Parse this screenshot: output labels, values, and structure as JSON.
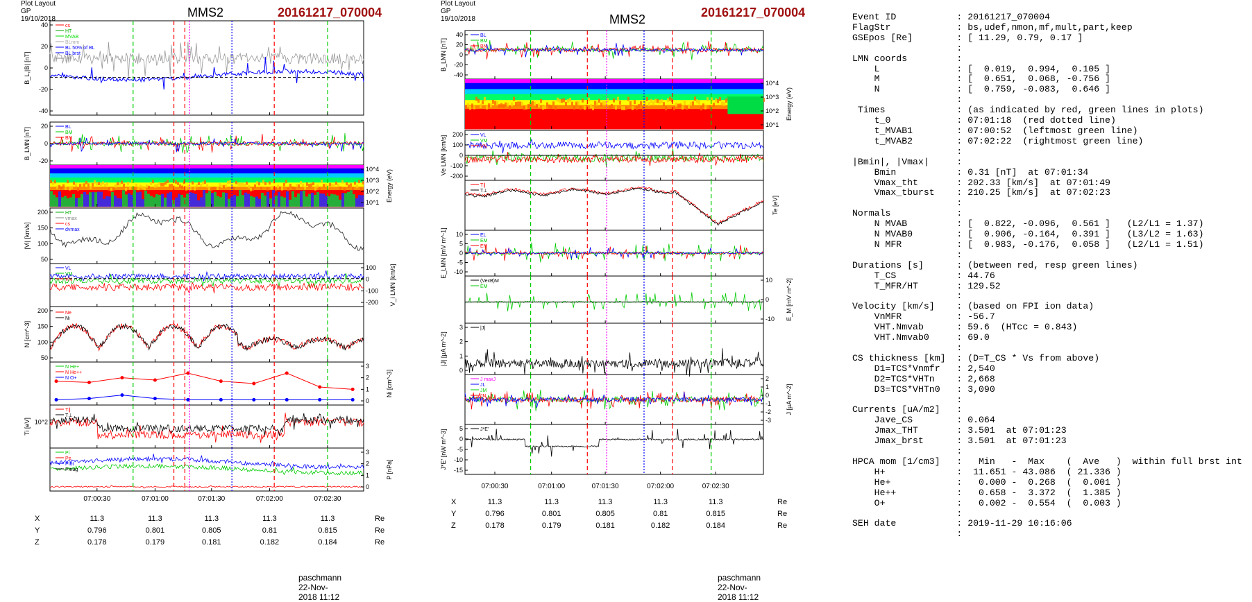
{
  "left_panel": {
    "header": "Plot Layout GP 19/10/2018",
    "spacecraft": "MMS2",
    "event": "20161217_070004",
    "footer": "paschmann 22-Nov-2018 11:12",
    "time_ticks": [
      "07:00:30",
      "07:01:00",
      "07:01:30",
      "07:02:00",
      "07:02:30"
    ],
    "coords": [
      {
        "label": "X",
        "values": [
          "11.3",
          "11.3",
          "11.3",
          "11.3",
          "11.3"
        ],
        "unit": "Re"
      },
      {
        "label": "Y",
        "values": [
          "0.796",
          "0.801",
          "0.805",
          "0.81",
          "0.815"
        ],
        "unit": "Re"
      },
      {
        "label": "Z",
        "values": [
          "0.178",
          "0.179",
          "0.181",
          "0.182",
          "0.184"
        ],
        "unit": "Re"
      }
    ],
    "panels": [
      {
        "id": "bl",
        "ylabel": "B_L,|B| [nT]",
        "yticks": [
          "40",
          "20",
          "0",
          "-20",
          "-40"
        ],
        "legend": [
          "cs",
          "HT",
          "MVAB",
          "BLmm",
          "BL 50% of BL",
          "BL brst",
          "|B|"
        ],
        "legend_colors": [
          "#ff0000",
          "#00aa00",
          "#00dd00",
          "#aaaaaa",
          "#0000ff",
          "#0000ff",
          "#888888"
        ]
      },
      {
        "id": "blmn",
        "ylabel": "B_LMN [nT]",
        "yticks": [
          "20",
          "0",
          "-20"
        ],
        "legend": [
          "BL",
          "BM",
          "BN"
        ],
        "legend_colors": [
          "#0000ff",
          "#00cc00",
          "#ff0000"
        ]
      },
      {
        "id": "espec",
        "ylabel_right": "Energy (eV)",
        "yticks_right": [
          "10^4",
          "10^3",
          "10^2",
          "10^1"
        ]
      },
      {
        "id": "vi",
        "ylabel": "|Vi| [km/s]",
        "yticks": [
          "200",
          "150",
          "100",
          "50"
        ],
        "legend": [
          "HT",
          "vmax",
          "cs",
          "dvmax"
        ],
        "legend_colors": [
          "#00aa00",
          "#888888",
          "#ff0000",
          "#0000ff"
        ]
      },
      {
        "id": "vilmn",
        "ylabel_right": "V_i LMN [km/s]",
        "yticks_right": [
          "100",
          "0",
          "-100",
          "-200"
        ],
        "legend": [
          "VL",
          "VM",
          "VN"
        ],
        "legend_colors": [
          "#0000ff",
          "#00cc00",
          "#ff0000"
        ]
      },
      {
        "id": "n",
        "ylabel": "N [cm^-3]",
        "yticks": [
          "200",
          "150",
          "100",
          "50"
        ],
        "legend": [
          "Ne",
          "Ni"
        ],
        "legend_colors": [
          "#ff0000",
          "#000000"
        ]
      },
      {
        "id": "ni",
        "ylabel_right": "Ni [cm^-3]",
        "yticks_right": [
          "3",
          "2",
          "1",
          "0"
        ],
        "legend": [
          "N He+",
          "N He++",
          "N O+"
        ],
        "legend_colors": [
          "#00cc00",
          "#ff0000",
          "#0000ff"
        ]
      },
      {
        "id": "ti",
        "ylabel": "Ti [eV]",
        "yticks": [
          "10^2"
        ],
        "legend": [
          "T∥",
          "T⊥"
        ],
        "legend_colors": [
          "#ff0000",
          "#000000"
        ]
      },
      {
        "id": "p",
        "ylabel_right": "P [nPa]",
        "yticks_right": [
          "3",
          "2",
          "1",
          "0"
        ],
        "legend": [
          "Pi",
          "Pe",
          "Ptot",
          "Pmag"
        ],
        "legend_colors": [
          "#00cc00",
          "#ff0000",
          "#0000ff",
          "#000000"
        ]
      }
    ]
  },
  "mid_panel": {
    "header": "Plot Layout GP 19/10/2018",
    "spacecraft": "MMS2",
    "event": "20161217_070004",
    "footer": "paschmann 22-Nov-2018 11:12",
    "time_ticks": [
      "07:00:30",
      "07:01:00",
      "07:01:30",
      "07:02:00",
      "07:02:30"
    ],
    "coords": [
      {
        "label": "X",
        "values": [
          "11.3",
          "11.3",
          "11.3",
          "11.3",
          "11.3"
        ],
        "unit": "Re"
      },
      {
        "label": "Y",
        "values": [
          "0.796",
          "0.801",
          "0.805",
          "0.81",
          "0.815"
        ],
        "unit": "Re"
      },
      {
        "label": "Z",
        "values": [
          "0.178",
          "0.179",
          "0.181",
          "0.182",
          "0.184"
        ],
        "unit": "Re"
      }
    ],
    "panels": [
      {
        "id": "blmn2",
        "ylabel": "B_LMN [nT]",
        "yticks": [
          "40",
          "20",
          "0",
          "-20",
          "-40"
        ],
        "legend": [
          "BL",
          "BM",
          "BN"
        ],
        "legend_colors": [
          "#0000ff",
          "#00cc00",
          "#ff0000"
        ]
      },
      {
        "id": "espec2",
        "ylabel_right": "Energy (eV)",
        "yticks_right": [
          "10^4",
          "10^3",
          "10^2",
          "10^1"
        ]
      },
      {
        "id": "ve",
        "ylabel": "Ve LMN [km/s]",
        "yticks": [
          "200",
          "100",
          "0",
          "-100",
          "-200"
        ],
        "legend": [
          "VL",
          "VM",
          "VN"
        ],
        "legend_colors": [
          "#0000ff",
          "#00cc00",
          "#ff0000"
        ]
      },
      {
        "id": "te",
        "ylabel_right": "Te [eV]",
        "legend": [
          "T∥",
          "T⊥"
        ],
        "legend_colors": [
          "#ff0000",
          "#000000"
        ]
      },
      {
        "id": "elmn",
        "ylabel": "E_LMN [mV m^-1]",
        "yticks": [
          "10",
          "5",
          "0",
          "-5",
          "-10"
        ],
        "legend": [
          "EL",
          "EM",
          "EN"
        ],
        "legend_colors": [
          "#0000ff",
          "#00cc00",
          "#ff0000"
        ]
      },
      {
        "id": "em",
        "ylabel_right": "E_M [mV m^-2]",
        "yticks_right": [
          "10",
          "0",
          "-10"
        ],
        "legend": [
          "(VexB)M",
          "EM"
        ],
        "legend_colors": [
          "#000000",
          "#00cc00"
        ]
      },
      {
        "id": "j",
        "ylabel": "|J| [µA m^-2]",
        "yticks": [
          "3",
          "2",
          "1",
          "0"
        ],
        "legend": [
          "|J|"
        ],
        "legend_colors": [
          "#000000"
        ]
      },
      {
        "id": "jlmn",
        "ylabel_right": "J [µA m^-2]",
        "yticks_right": [
          "2",
          "1",
          "0",
          "-1",
          "-2",
          "-3"
        ],
        "legend": [
          "J maxJ",
          "JL",
          "JM",
          "JN"
        ],
        "legend_colors": [
          "#ff00ff",
          "#0000ff",
          "#00cc00",
          "#ff0000"
        ]
      },
      {
        "id": "je",
        "ylabel": "J*E' [nW m^-3]",
        "yticks": [
          "5",
          "0",
          "-5",
          "-10",
          "-15"
        ],
        "legend": [
          "J*E'"
        ],
        "legend_colors": [
          "#000000"
        ]
      }
    ]
  },
  "info_lines": [
    "Event ID           : 20161217_070004",
    "FlagStr            : bs,udef,nmon,mf,mult,part,keep",
    "GSEpos [Re]        : [ 11.29, 0.79, 0.17 ]",
    "                   :",
    "LMN coords         :",
    "    L              : [  0.019,  0.994,  0.105 ]",
    "    M              : [  0.651,  0.068, -0.756 ]",
    "    N              : [  0.759, -0.083,  0.646 ]",
    "                   :",
    " Times             : (as indicated by red, green lines in plots)",
    "    t_0            : 07:01:18  (red dotted line)",
    "    t_MVAB1        : 07:00:52  (leftmost green line)",
    "    t_MVAB2        : 07:02:22  (rightmost green line)",
    "                   :",
    "|Bmin|, |Vmax|     :",
    "    Bmin           : 0.31 [nT]  at 07:01:34",
    "    Vmax_tht       : 202.33 [km/s]  at 07:01:49",
    "    Vmax_tburst    : 210.25 [km/s]  at 07:02:23",
    "                   :",
    "Normals            :",
    "    N MVAB         : [  0.822, -0.096,  0.561 ]   (L2/L1 = 1.37)",
    "    N MVAB0        : [  0.906, -0.164,  0.391 ]   (L3/L2 = 1.63)",
    "    N MFR          : [  0.983, -0.176,  0.058 ]   (L2/L1 = 1.51)",
    "                   :",
    "Durations [s]      : (between red, resp green lines)",
    "    T_CS           : 44.76",
    "    T_MFR/HT       : 129.52",
    "                   :",
    "Velocity [km/s]    : (based on FPI ion data)",
    "    VnMFR          : -56.7",
    "    VHT.Nmvab      : 59.6  (HTcc = 0.843)",
    "    VHT.Nmvab0     : 69.0",
    "                   :",
    "CS thickness [km]  : (D=T_CS * Vs from above)",
    "    D1=TCS*Vnmfr   : 2,540",
    "    D2=TCS*VHTn    : 2,668",
    "    D3=TCS*VHTn0   : 3,090",
    "                   :",
    "Currents [uA/m2]   :",
    "    Jave_CS        : 0.064",
    "    Jmax_THT       : 3.501  at 07:01:23",
    "    Jmax_brst      : 3.501  at 07:01:23",
    "                   :",
    "HPCA mom [1/cm3]   :   Min   -  Max    (  Ave   )  within full brst int",
    "    H+             :  11.651 - 43.086  ( 21.336 )",
    "    He+            :   0.000 -  0.268  (  0.001 )",
    "    He++           :   0.658 -  3.372  (  1.385 )",
    "    O+             :   0.002 -  0.554  (  0.003 )",
    "                   :",
    "SEH date           : 2019-11-29 10:16:06",
    "                   :"
  ],
  "chart_data": [
    {
      "type": "line",
      "title": "MMS2 20161217_070004",
      "xlabel": "",
      "x": [
        "07:00:30",
        "07:01:00",
        "07:01:30",
        "07:02:00",
        "07:02:30"
      ],
      "series_note": "multi-panel time series of magnetic field, ion spectra, velocity, density, temperature, pressure",
      "markers": {
        "t_0": "07:01:18",
        "t_MVAB1": "07:00:52",
        "t_MVAB2": "07:02:22"
      },
      "panels": [
        {
          "name": "|Vi|",
          "ylabel": "|Vi| [km/s]",
          "ylim": [
            50,
            200
          ],
          "x": [
            "07:00:30",
            "07:01:00",
            "07:01:30",
            "07:02:00",
            "07:02:30"
          ],
          "values": [
            150,
            120,
            165,
            105,
            170
          ]
        },
        {
          "name": "N",
          "ylabel": "N [cm^-3]",
          "ylim": [
            0,
            200
          ],
          "x": [
            "07:00:30",
            "07:01:00",
            "07:01:30",
            "07:02:00",
            "07:02:30"
          ],
          "values": [
            60,
            140,
            80,
            30,
            90
          ]
        },
        {
          "name": "N He++",
          "ylabel": "Ni [cm^-3]",
          "ylim": [
            0,
            3
          ],
          "x": [
            "07:00:30",
            "07:01:00",
            "07:01:30",
            "07:02:00",
            "07:02:30"
          ],
          "values": [
            1.7,
            2.4,
            1.5,
            2.4,
            1.0
          ]
        }
      ]
    },
    {
      "type": "line",
      "title": "MMS2 20161217_070004",
      "x": [
        "07:00:30",
        "07:01:00",
        "07:01:30",
        "07:02:00",
        "07:02:30"
      ],
      "panels": [
        {
          "name": "|J|",
          "ylabel": "|J| [µA m^-2]",
          "ylim": [
            0,
            3.5
          ],
          "x": [
            "07:00:30",
            "07:01:00",
            "07:01:30",
            "07:02:00",
            "07:02:30"
          ],
          "values": [
            0.8,
            0.6,
            1.2,
            0.3,
            0.8
          ]
        },
        {
          "name": "Te",
          "ylabel": "Te [eV]",
          "x": [
            "07:00:30",
            "07:01:00",
            "07:01:30",
            "07:02:00",
            "07:02:30"
          ],
          "values": [
            3.0,
            2.8,
            2.9,
            3.6,
            1.2
          ]
        }
      ]
    }
  ]
}
